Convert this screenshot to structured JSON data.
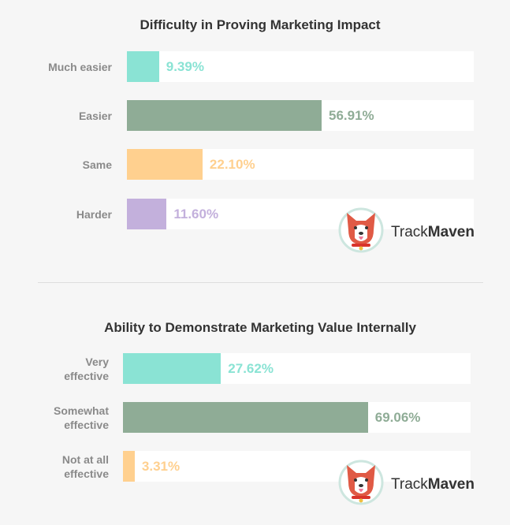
{
  "chart_data": [
    {
      "type": "bar",
      "orientation": "horizontal",
      "title": "Difficulty in Proving Marketing Impact",
      "categories": [
        "Much easier",
        "Easier",
        "Same",
        "Harder"
      ],
      "values": [
        9.39,
        56.91,
        22.1,
        11.6
      ],
      "labels": [
        "9.39%",
        "56.91%",
        "22.10%",
        "11.60%"
      ],
      "colors": [
        "#8ae3d4",
        "#8fac96",
        "#ffd08f",
        "#c3b0dc"
      ]
    },
    {
      "type": "bar",
      "orientation": "horizontal",
      "title": "Ability to Demonstrate Marketing Value Internally",
      "categories": [
        "Very effective",
        "Somewhat effective",
        "Not at all effective"
      ],
      "values": [
        27.62,
        69.06,
        3.31
      ],
      "labels": [
        "27.62%",
        "69.06%",
        "3.31%"
      ],
      "colors": [
        "#8ae3d4",
        "#8fac96",
        "#ffd08f"
      ]
    }
  ],
  "logo": {
    "text_light": "Track",
    "text_bold": "Maven"
  }
}
